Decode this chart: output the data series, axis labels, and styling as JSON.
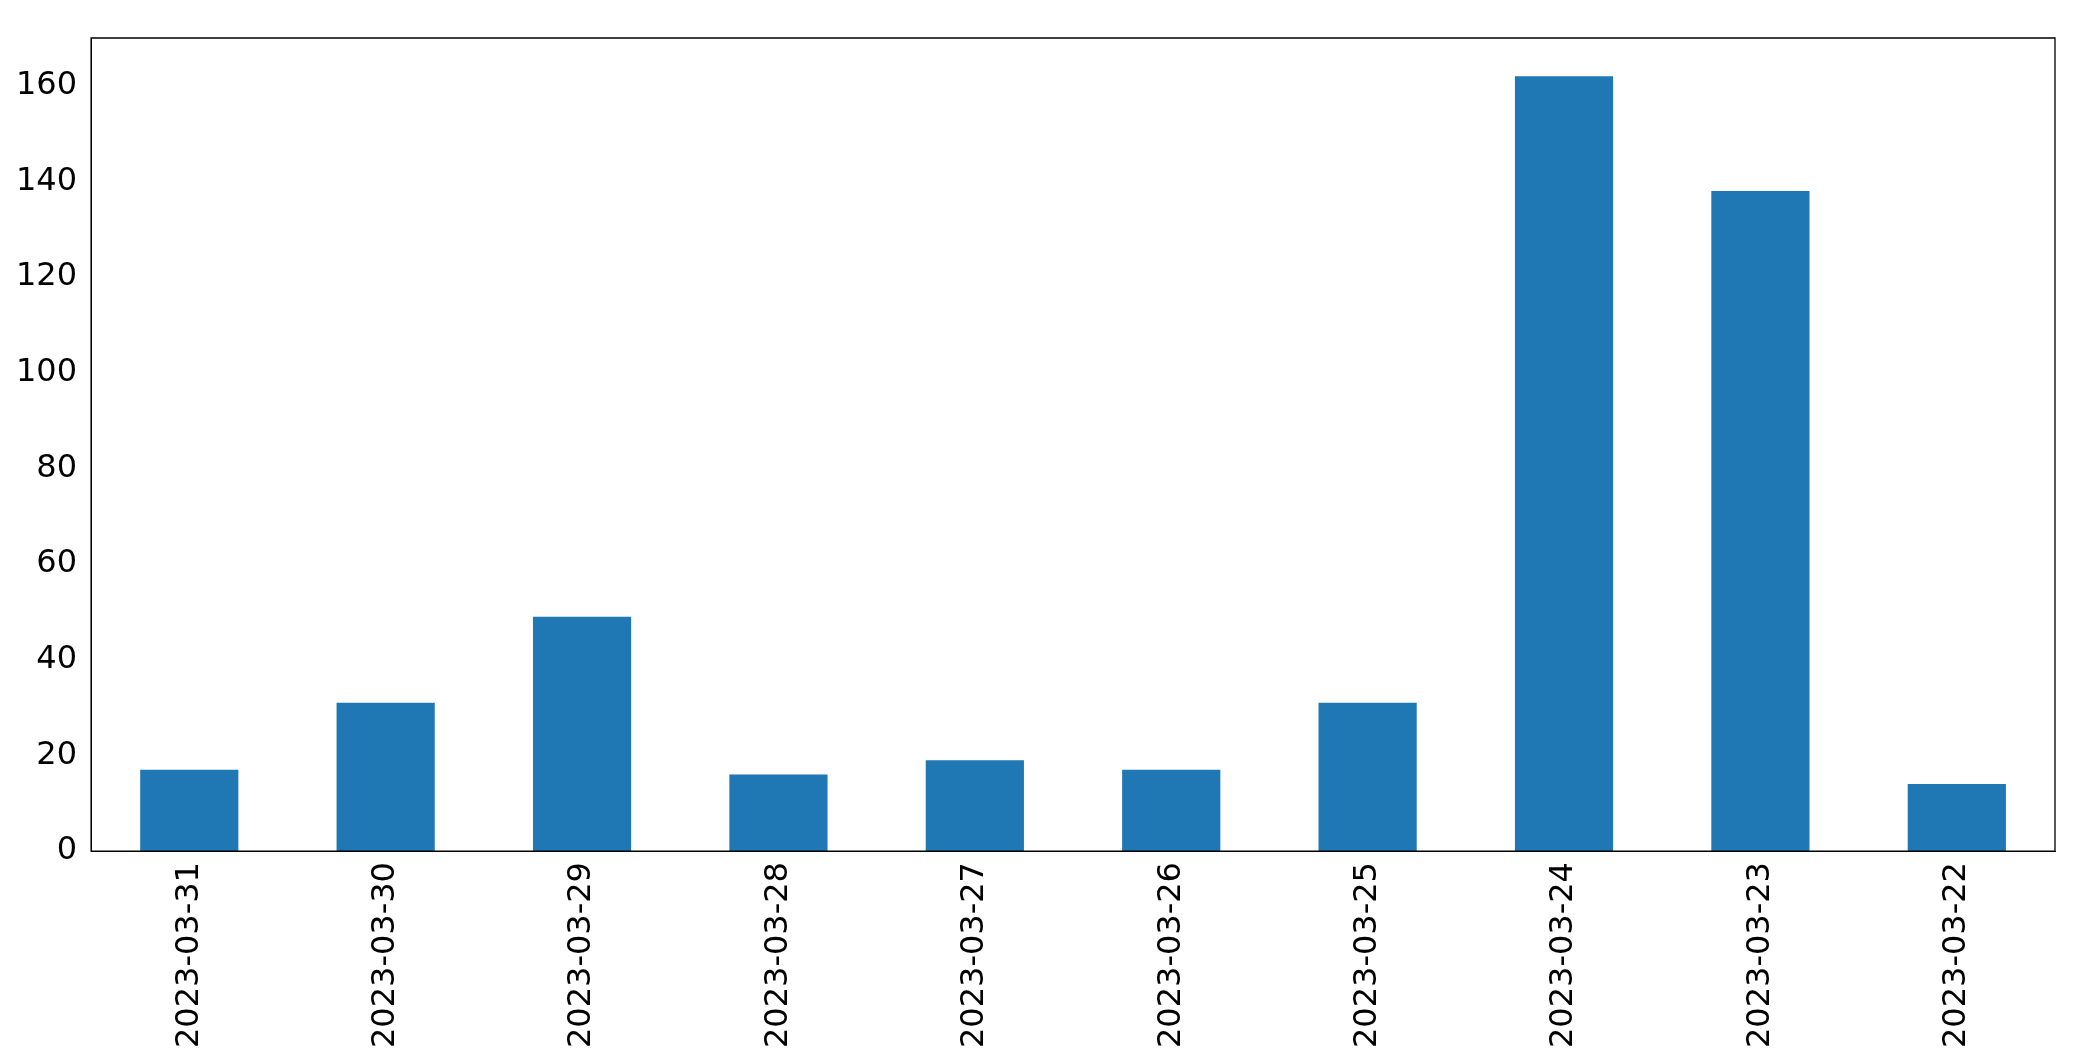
{
  "chart_data": {
    "type": "bar",
    "categories": [
      "2023-03-31",
      "2023-03-30",
      "2023-03-29",
      "2023-03-28",
      "2023-03-27",
      "2023-03-26",
      "2023-03-25",
      "2023-03-24",
      "2023-03-23",
      "2023-03-22"
    ],
    "values": [
      17,
      31,
      49,
      16,
      19,
      17,
      31,
      162,
      138,
      14
    ],
    "color": "#1f77b4",
    "ylim": [
      0,
      170
    ],
    "yticks": [
      0,
      20,
      40,
      60,
      80,
      100,
      120,
      140,
      160
    ],
    "grid": false,
    "legend": false
  }
}
